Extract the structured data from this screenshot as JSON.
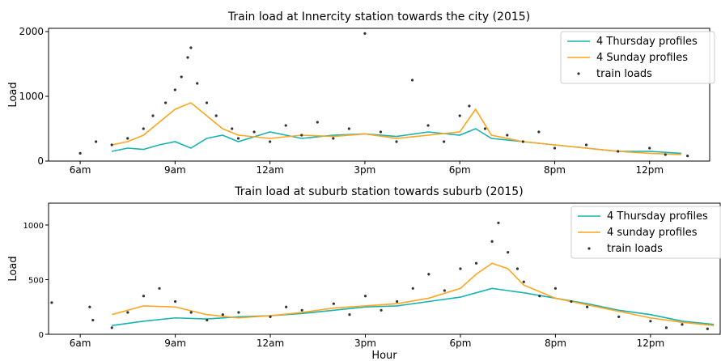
{
  "chart_data": [
    {
      "type": "line",
      "title": "Train load at Innercity station towards the city (2015)",
      "y_label": "Load",
      "xlim": [
        5,
        25.9
      ],
      "ylim": [
        0,
        2050
      ],
      "xticks": [
        {
          "value": 6,
          "label": "6am"
        },
        {
          "value": 9,
          "label": "9am"
        },
        {
          "value": 12,
          "label": "12am"
        },
        {
          "value": 15,
          "label": "3pm"
        },
        {
          "value": 18,
          "label": "6pm"
        },
        {
          "value": 21,
          "label": "8pm"
        },
        {
          "value": 24,
          "label": "12pm"
        }
      ],
      "yticks": [
        0,
        1000,
        2000
      ],
      "legend": "upper right",
      "series": [
        {
          "name": "4 Thursday profiles",
          "mode": "lines",
          "color": "#17b3b0",
          "x": [
            7,
            7.5,
            8,
            8.5,
            9,
            9.5,
            10,
            10.5,
            11,
            12,
            13,
            14,
            15,
            16,
            17,
            18,
            18.5,
            19,
            20,
            21,
            22,
            23,
            24,
            25
          ],
          "values": [
            150,
            200,
            180,
            250,
            300,
            200,
            350,
            400,
            300,
            450,
            350,
            400,
            420,
            380,
            450,
            400,
            500,
            350,
            300,
            250,
            200,
            150,
            150,
            120
          ]
        },
        {
          "name": "4 Sunday profiles",
          "mode": "lines",
          "color": "#ffa51f",
          "x": [
            7,
            7.5,
            8,
            8.5,
            9,
            9.5,
            10,
            10.5,
            11,
            12,
            13,
            14,
            15,
            16,
            17,
            18,
            18.5,
            19,
            20,
            21,
            22,
            23,
            24,
            25
          ],
          "values": [
            250,
            300,
            400,
            600,
            800,
            900,
            700,
            500,
            400,
            350,
            400,
            380,
            420,
            350,
            400,
            450,
            800,
            400,
            300,
            250,
            200,
            150,
            120,
            100
          ]
        },
        {
          "name": "train loads",
          "mode": "markers",
          "color": "#333333",
          "x": [
            6,
            6.5,
            7,
            7.5,
            8,
            8.3,
            8.7,
            9,
            9.2,
            9.4,
            9.5,
            9.7,
            10,
            10.3,
            10.8,
            11,
            11.5,
            12,
            12.5,
            13,
            13.5,
            14,
            14.5,
            15,
            15.5,
            16,
            16.5,
            17,
            17.5,
            18,
            18.3,
            18.8,
            19.5,
            20,
            20.5,
            21,
            22,
            23,
            24,
            24.5,
            25.2
          ],
          "values": [
            120,
            300,
            250,
            350,
            500,
            700,
            900,
            1100,
            1300,
            1600,
            1750,
            1200,
            900,
            700,
            500,
            350,
            450,
            300,
            550,
            400,
            600,
            350,
            500,
            1970,
            450,
            300,
            1250,
            550,
            300,
            700,
            850,
            500,
            400,
            300,
            450,
            200,
            250,
            150,
            200,
            100,
            80
          ]
        }
      ]
    },
    {
      "type": "line",
      "title": "Train load at suburb station towards suburb (2015)",
      "y_label": "Load",
      "x_label": "Hour",
      "xlim": [
        5,
        26.2
      ],
      "ylim": [
        0,
        1200
      ],
      "xticks": [
        {
          "value": 6,
          "label": "6am"
        },
        {
          "value": 9,
          "label": "9am"
        },
        {
          "value": 12,
          "label": "12am"
        },
        {
          "value": 15,
          "label": "3pm"
        },
        {
          "value": 18,
          "label": "6pm"
        },
        {
          "value": 21,
          "label": "8pm"
        },
        {
          "value": 24,
          "label": "12pm"
        }
      ],
      "yticks": [
        0,
        500,
        1000
      ],
      "legend": "upper right",
      "series": [
        {
          "name": "4 Thursday profiles",
          "mode": "lines",
          "color": "#17b3b0",
          "x": [
            7,
            8,
            9,
            10,
            11,
            12,
            13,
            14,
            15,
            16,
            17,
            18,
            18.5,
            19,
            19.5,
            20,
            21,
            22,
            23,
            24,
            25,
            26
          ],
          "values": [
            80,
            120,
            150,
            140,
            160,
            170,
            190,
            220,
            250,
            260,
            300,
            340,
            380,
            420,
            400,
            380,
            330,
            280,
            220,
            180,
            120,
            90
          ]
        },
        {
          "name": "4 sunday profiles",
          "mode": "lines",
          "color": "#ffa51f",
          "x": [
            7,
            8,
            9,
            10,
            11,
            12,
            13,
            14,
            15,
            16,
            17,
            18,
            18.5,
            19,
            19.5,
            20,
            21,
            22,
            23,
            24,
            25,
            26
          ],
          "values": [
            180,
            260,
            250,
            180,
            150,
            170,
            200,
            240,
            260,
            280,
            330,
            420,
            550,
            650,
            600,
            450,
            330,
            270,
            210,
            150,
            110,
            80
          ]
        },
        {
          "name": "train loads",
          "mode": "markers",
          "color": "#333333",
          "x": [
            5.1,
            6.3,
            6.4,
            7,
            7.5,
            8,
            8.5,
            9,
            9.5,
            10,
            10.5,
            11,
            12,
            12.5,
            13,
            14,
            14.5,
            15,
            15.5,
            16,
            16.5,
            17,
            17.5,
            18,
            18.5,
            19,
            19.2,
            19.5,
            19.8,
            20,
            20.5,
            21,
            21.5,
            22,
            23,
            24,
            24.5,
            25,
            25.8
          ],
          "values": [
            290,
            250,
            130,
            60,
            200,
            350,
            420,
            300,
            200,
            130,
            180,
            200,
            160,
            250,
            220,
            280,
            180,
            350,
            220,
            300,
            420,
            550,
            400,
            600,
            650,
            850,
            1020,
            750,
            600,
            480,
            350,
            420,
            300,
            250,
            160,
            120,
            60,
            90,
            50
          ]
        }
      ]
    }
  ]
}
